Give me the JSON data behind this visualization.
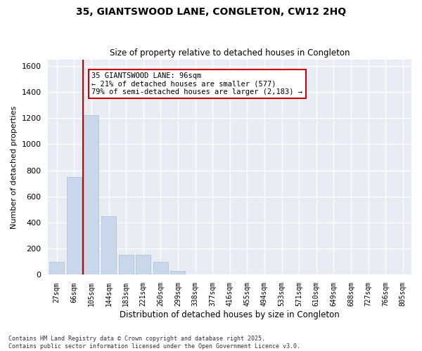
{
  "title1": "35, GIANTSWOOD LANE, CONGLETON, CW12 2HQ",
  "title2": "Size of property relative to detached houses in Congleton",
  "xlabel": "Distribution of detached houses by size in Congleton",
  "ylabel": "Number of detached properties",
  "categories": [
    "27sqm",
    "66sqm",
    "105sqm",
    "144sqm",
    "183sqm",
    "221sqm",
    "260sqm",
    "299sqm",
    "338sqm",
    "377sqm",
    "416sqm",
    "455sqm",
    "494sqm",
    "533sqm",
    "571sqm",
    "610sqm",
    "649sqm",
    "688sqm",
    "727sqm",
    "766sqm",
    "805sqm"
  ],
  "values": [
    100,
    750,
    1225,
    450,
    155,
    155,
    100,
    30,
    5,
    0,
    0,
    0,
    0,
    0,
    0,
    0,
    0,
    0,
    0,
    0,
    0
  ],
  "bar_color": "#c8d8ea",
  "bar_edge_color": "#a8c0d6",
  "vline_color": "#cc0000",
  "annotation_text": "35 GIANTSWOOD LANE: 96sqm\n← 21% of detached houses are smaller (577)\n79% of semi-detached houses are larger (2,183) →",
  "annotation_box_color": "white",
  "annotation_box_edge": "#cc0000",
  "ylim": [
    0,
    1650
  ],
  "yticks": [
    0,
    200,
    400,
    600,
    800,
    1000,
    1200,
    1400,
    1600
  ],
  "plot_bg_color": "#e8edf4",
  "fig_bg_color": "#ffffff",
  "grid_color": "white",
  "footer": "Contains HM Land Registry data © Crown copyright and database right 2025.\nContains public sector information licensed under the Open Government Licence v3.0."
}
